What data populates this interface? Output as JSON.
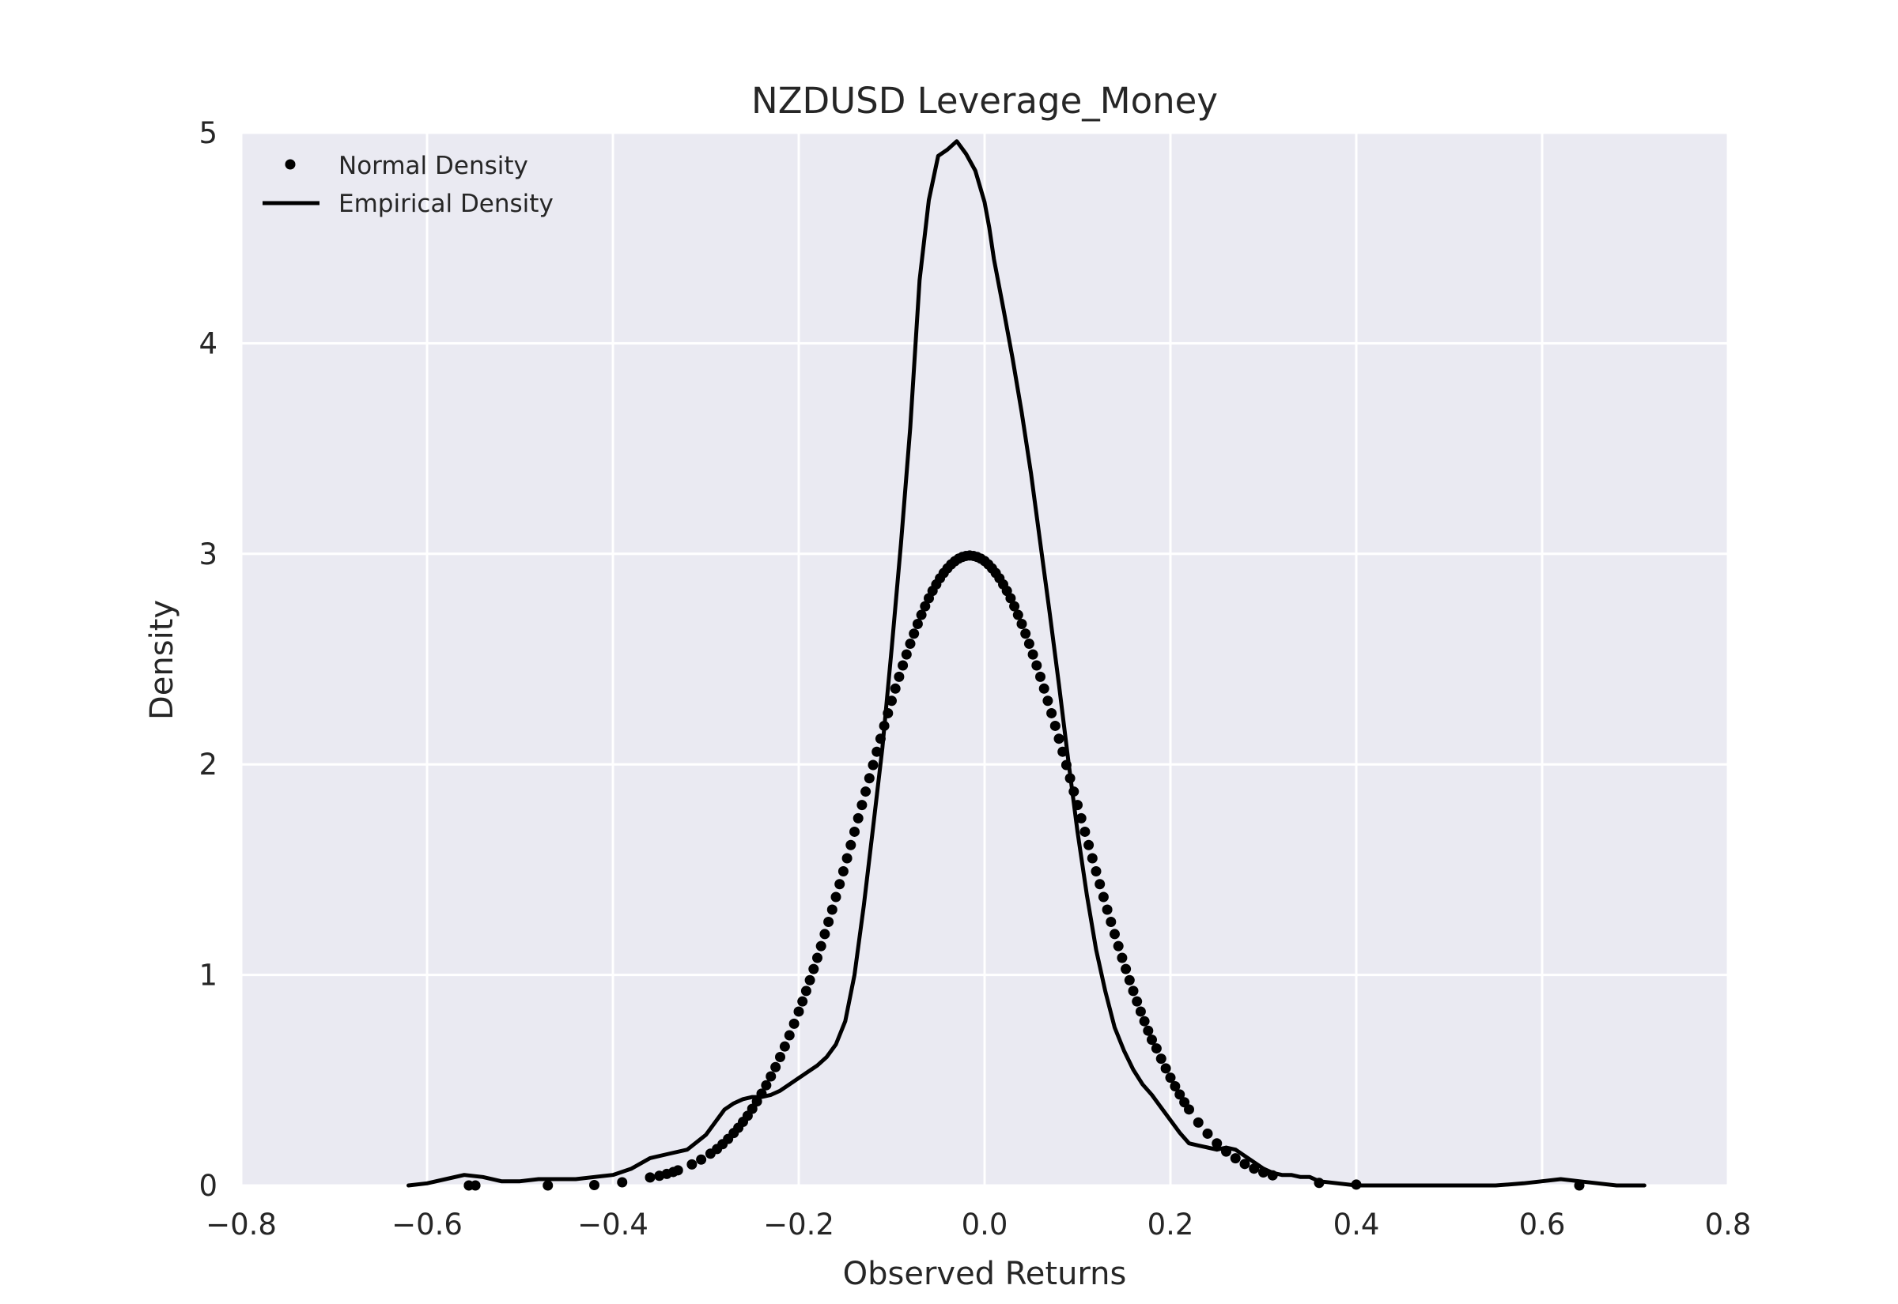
{
  "chart_data": {
    "type": "line",
    "title": "NZDUSD Leverage_Money",
    "xlabel": "Observed Returns",
    "ylabel": "Density",
    "xlim": [
      -0.8,
      0.8
    ],
    "ylim": [
      0,
      5
    ],
    "xticks": [
      -0.8,
      -0.6,
      -0.4,
      -0.2,
      0.0,
      0.2,
      0.4,
      0.6,
      0.8
    ],
    "xtick_labels": [
      "−0.8",
      "−0.6",
      "−0.4",
      "−0.2",
      "0.0",
      "0.2",
      "0.4",
      "0.6",
      "0.8"
    ],
    "yticks": [
      0,
      1,
      2,
      3,
      4,
      5
    ],
    "ytick_labels": [
      "0",
      "1",
      "2",
      "3",
      "4",
      "5"
    ],
    "grid": true,
    "legend_position": "top-left",
    "colors": {
      "background": "#eaeaf2",
      "grid": "#ffffff",
      "series": "#000000"
    },
    "series": [
      {
        "name": "Normal Density",
        "style": "dots",
        "mean": 0.0,
        "std": 0.119,
        "x": [
          -0.555,
          -0.548,
          -0.47,
          -0.42,
          -0.39,
          -0.36,
          -0.35,
          -0.342,
          -0.335,
          -0.33,
          -0.315,
          -0.305,
          -0.295,
          -0.288,
          -0.282,
          -0.276,
          -0.27,
          -0.265,
          -0.26,
          -0.255,
          -0.25,
          -0.245,
          -0.24,
          -0.235,
          -0.23,
          -0.225,
          -0.22,
          -0.215,
          -0.21,
          -0.205,
          -0.2,
          -0.196,
          -0.192,
          -0.188,
          -0.184,
          -0.18,
          -0.176,
          -0.172,
          -0.168,
          -0.164,
          -0.16,
          -0.156,
          -0.152,
          -0.148,
          -0.144,
          -0.14,
          -0.136,
          -0.132,
          -0.128,
          -0.124,
          -0.12,
          -0.116,
          -0.112,
          -0.108,
          -0.104,
          -0.1,
          -0.096,
          -0.092,
          -0.088,
          -0.084,
          -0.08,
          -0.076,
          -0.072,
          -0.068,
          -0.064,
          -0.06,
          -0.056,
          -0.052,
          -0.048,
          -0.044,
          -0.04,
          -0.036,
          -0.032,
          -0.028,
          -0.024,
          -0.02,
          -0.016,
          -0.012,
          -0.008,
          -0.004,
          0.0,
          0.004,
          0.008,
          0.012,
          0.016,
          0.02,
          0.024,
          0.028,
          0.032,
          0.036,
          0.04,
          0.044,
          0.048,
          0.052,
          0.056,
          0.06,
          0.064,
          0.068,
          0.072,
          0.076,
          0.08,
          0.084,
          0.088,
          0.092,
          0.096,
          0.1,
          0.104,
          0.108,
          0.112,
          0.116,
          0.12,
          0.124,
          0.128,
          0.132,
          0.136,
          0.14,
          0.144,
          0.148,
          0.152,
          0.156,
          0.16,
          0.164,
          0.168,
          0.172,
          0.176,
          0.18,
          0.185,
          0.19,
          0.195,
          0.2,
          0.205,
          0.21,
          0.215,
          0.22,
          0.23,
          0.24,
          0.25,
          0.26,
          0.27,
          0.28,
          0.29,
          0.3,
          0.31,
          0.36,
          0.4,
          0.64
        ],
        "y": [
          0.0,
          0.0,
          0.0,
          0.002,
          0.015,
          0.038,
          0.046,
          0.055,
          0.064,
          0.072,
          0.1,
          0.123,
          0.151,
          0.173,
          0.196,
          0.221,
          0.249,
          0.274,
          0.302,
          0.331,
          0.364,
          0.399,
          0.436,
          0.476,
          0.518,
          0.562,
          0.61,
          0.66,
          0.713,
          0.768,
          0.826,
          0.874,
          0.924,
          0.975,
          1.028,
          1.081,
          1.137,
          1.194,
          1.252,
          1.31,
          1.37,
          1.431,
          1.492,
          1.554,
          1.617,
          1.68,
          1.744,
          1.807,
          1.871,
          1.934,
          1.997,
          2.06,
          2.122,
          2.183,
          2.243,
          2.302,
          2.36,
          2.416,
          2.47,
          2.522,
          2.573,
          2.621,
          2.667,
          2.71,
          2.751,
          2.789,
          2.824,
          2.855,
          2.884,
          2.909,
          2.931,
          2.95,
          2.965,
          2.977,
          2.985,
          2.99,
          2.992,
          2.99,
          2.985,
          2.977,
          2.966,
          2.95,
          2.931,
          2.909,
          2.884,
          2.855,
          2.824,
          2.789,
          2.751,
          2.71,
          2.667,
          2.621,
          2.573,
          2.522,
          2.47,
          2.416,
          2.36,
          2.302,
          2.243,
          2.183,
          2.122,
          2.06,
          1.997,
          1.934,
          1.871,
          1.807,
          1.744,
          1.68,
          1.617,
          1.554,
          1.492,
          1.431,
          1.37,
          1.31,
          1.252,
          1.194,
          1.137,
          1.081,
          1.028,
          0.975,
          0.924,
          0.874,
          0.826,
          0.78,
          0.735,
          0.692,
          0.651,
          0.602,
          0.556,
          0.512,
          0.471,
          0.432,
          0.395,
          0.361,
          0.299,
          0.246,
          0.2,
          0.161,
          0.129,
          0.102,
          0.08,
          0.062,
          0.048,
          0.012,
          0.004,
          0.0
        ]
      },
      {
        "name": "Empirical Density",
        "style": "line",
        "x": [
          -0.62,
          -0.6,
          -0.58,
          -0.56,
          -0.54,
          -0.52,
          -0.5,
          -0.48,
          -0.46,
          -0.44,
          -0.42,
          -0.4,
          -0.38,
          -0.36,
          -0.34,
          -0.32,
          -0.3,
          -0.28,
          -0.27,
          -0.26,
          -0.25,
          -0.24,
          -0.23,
          -0.22,
          -0.21,
          -0.2,
          -0.19,
          -0.18,
          -0.17,
          -0.16,
          -0.15,
          -0.14,
          -0.13,
          -0.12,
          -0.11,
          -0.1,
          -0.09,
          -0.08,
          -0.07,
          -0.06,
          -0.05,
          -0.04,
          -0.03,
          -0.02,
          -0.01,
          0.0,
          0.005,
          0.01,
          0.02,
          0.03,
          0.04,
          0.05,
          0.06,
          0.07,
          0.08,
          0.09,
          0.1,
          0.11,
          0.12,
          0.13,
          0.14,
          0.15,
          0.16,
          0.17,
          0.18,
          0.19,
          0.2,
          0.21,
          0.22,
          0.23,
          0.24,
          0.25,
          0.26,
          0.27,
          0.28,
          0.29,
          0.3,
          0.31,
          0.32,
          0.33,
          0.34,
          0.35,
          0.36,
          0.38,
          0.4,
          0.42,
          0.44,
          0.46,
          0.5,
          0.55,
          0.58,
          0.6,
          0.62,
          0.64,
          0.66,
          0.68,
          0.7,
          0.71
        ],
        "y": [
          0.0,
          0.01,
          0.03,
          0.05,
          0.04,
          0.02,
          0.02,
          0.03,
          0.03,
          0.03,
          0.04,
          0.05,
          0.08,
          0.13,
          0.15,
          0.17,
          0.24,
          0.36,
          0.39,
          0.41,
          0.42,
          0.42,
          0.43,
          0.45,
          0.48,
          0.51,
          0.54,
          0.57,
          0.61,
          0.67,
          0.78,
          1.0,
          1.33,
          1.7,
          2.08,
          2.55,
          3.05,
          3.6,
          4.3,
          4.68,
          4.89,
          4.92,
          4.96,
          4.9,
          4.82,
          4.67,
          4.55,
          4.4,
          4.17,
          3.93,
          3.67,
          3.38,
          3.05,
          2.72,
          2.38,
          2.02,
          1.68,
          1.38,
          1.12,
          0.92,
          0.75,
          0.64,
          0.55,
          0.48,
          0.43,
          0.37,
          0.31,
          0.25,
          0.2,
          0.19,
          0.18,
          0.17,
          0.18,
          0.17,
          0.14,
          0.11,
          0.08,
          0.06,
          0.05,
          0.05,
          0.04,
          0.04,
          0.02,
          0.01,
          0.0,
          0.0,
          0.0,
          0.0,
          0.0,
          0.0,
          0.01,
          0.02,
          0.03,
          0.02,
          0.01,
          0.0,
          0.0,
          0.0
        ]
      }
    ]
  }
}
